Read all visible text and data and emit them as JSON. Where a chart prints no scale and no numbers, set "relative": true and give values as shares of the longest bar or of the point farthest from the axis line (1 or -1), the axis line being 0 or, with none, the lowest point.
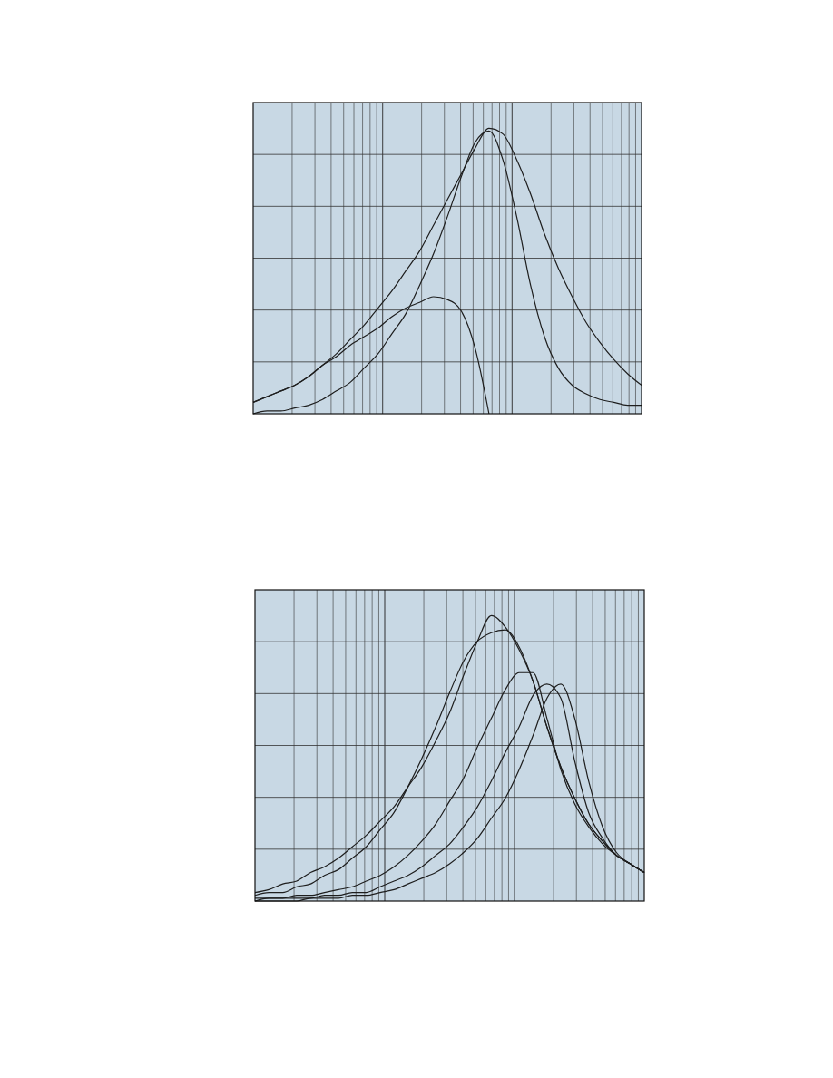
{
  "chart_data": [
    {
      "type": "line",
      "relative": true,
      "grid": true,
      "categories": [
        null,
        null,
        null,
        null,
        null,
        null,
        null,
        null,
        null,
        null,
        null,
        null,
        null,
        null,
        null,
        null,
        null,
        null,
        null,
        null,
        null,
        null,
        null,
        null,
        null,
        null,
        null,
        null,
        null
      ],
      "series": [
        {
          "color": "#1e1e1e",
          "values": [
            0.04,
            0.06,
            0.08,
            0.1,
            0.13,
            0.17,
            0.21,
            0.26,
            0.31,
            0.37,
            0.43,
            0.5,
            0.57,
            0.66,
            0.75,
            0.84,
            0.93,
            1.0,
            0.98,
            0.89,
            0.77,
            0.63,
            0.51,
            0.41,
            0.32,
            0.25,
            0.19,
            0.14,
            0.1
          ]
        },
        {
          "color": "#1e1e1e",
          "values": [
            0,
            0.01,
            0.01,
            0.02,
            0.03,
            0.05,
            0.08,
            0.11,
            0.16,
            0.21,
            0.28,
            0.35,
            0.45,
            0.56,
            0.69,
            0.83,
            0.95,
            0.99,
            0.89,
            0.69,
            0.45,
            0.27,
            0.16,
            0.1,
            0.07,
            0.05,
            0.04,
            0.03,
            0.03
          ]
        },
        {
          "color": "#1e1e1e",
          "values": [
            0.04,
            0.06,
            0.08,
            0.1,
            0.13,
            0.17,
            0.2,
            0.24,
            0.27,
            0.3,
            0.34,
            0.37,
            0.39,
            0.41,
            0.4,
            0.36,
            0.23,
            0,
            null,
            null,
            null,
            null,
            null,
            null,
            null,
            null,
            null,
            null,
            null
          ]
        }
      ]
    },
    {
      "type": "line",
      "relative": true,
      "grid": true,
      "categories": [
        null,
        null,
        null,
        null,
        null,
        null,
        null,
        null,
        null,
        null,
        null,
        null,
        null,
        null,
        null,
        null,
        null,
        null,
        null,
        null,
        null,
        null,
        null,
        null,
        null,
        null,
        null,
        null,
        null
      ],
      "series": [
        {
          "color": "#1e1e1e",
          "values": [
            0.03,
            0.04,
            0.06,
            0.07,
            0.1,
            0.12,
            0.15,
            0.19,
            0.23,
            0.28,
            0.33,
            0.4,
            0.47,
            0.56,
            0.66,
            0.79,
            0.91,
            1.0,
            0.96,
            0.88,
            0.77,
            0.61,
            0.47,
            0.36,
            0.27,
            0.21,
            0.16,
            0.13,
            0.1
          ]
        },
        {
          "color": "#1e1e1e",
          "values": [
            0.02,
            0.03,
            0.03,
            0.05,
            0.06,
            0.09,
            0.11,
            0.15,
            0.19,
            0.25,
            0.31,
            0.4,
            0.5,
            0.61,
            0.73,
            0.84,
            0.91,
            0.94,
            0.95,
            0.89,
            0.77,
            0.61,
            0.47,
            0.36,
            0.27,
            0.21,
            0.16,
            0.13,
            0.1
          ]
        },
        {
          "color": "#1e1e1e",
          "values": [
            0.01,
            0.01,
            0.01,
            0.02,
            0.02,
            0.03,
            0.04,
            0.05,
            0.07,
            0.09,
            0.12,
            0.16,
            0.21,
            0.27,
            0.35,
            0.43,
            0.54,
            0.64,
            0.74,
            0.8,
            0.8,
            0.64,
            0.46,
            0.34,
            0.26,
            0.2,
            0.16,
            0.13,
            0.1
          ]
        },
        {
          "color": "#1e1e1e",
          "values": [
            0,
            0.01,
            0.01,
            0.01,
            0.01,
            0.02,
            0.02,
            0.03,
            0.03,
            0.05,
            0.07,
            0.09,
            0.12,
            0.16,
            0.2,
            0.26,
            0.33,
            0.42,
            0.52,
            0.61,
            0.72,
            0.76,
            0.71,
            0.49,
            0.31,
            0.22,
            0.16,
            0.13,
            0.1
          ]
        },
        {
          "color": "#1e1e1e",
          "values": [
            0,
            0,
            0,
            0,
            0.01,
            0.01,
            0.01,
            0.02,
            0.02,
            0.03,
            0.04,
            0.06,
            0.08,
            0.1,
            0.13,
            0.17,
            0.22,
            0.29,
            0.36,
            0.46,
            0.58,
            0.71,
            0.76,
            0.64,
            0.42,
            0.26,
            0.17,
            0.13,
            0.1
          ]
        }
      ]
    }
  ]
}
